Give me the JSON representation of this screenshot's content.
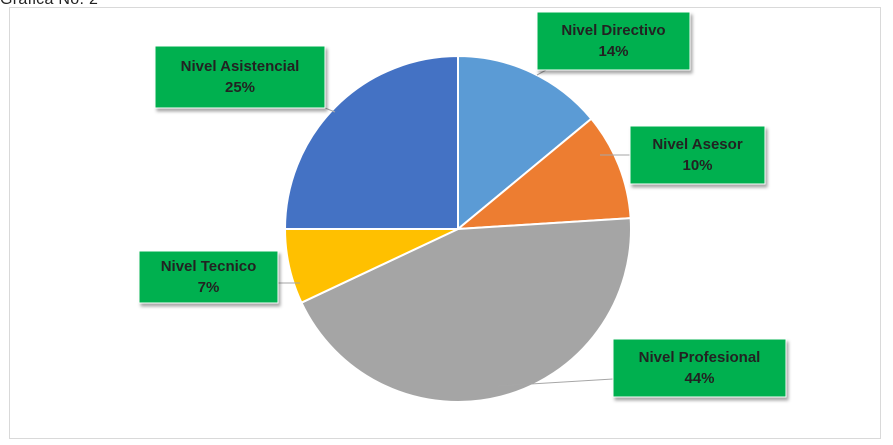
{
  "caption": "Gráfica No. 2",
  "colors": {
    "label_box": "#00b050",
    "leader": "#a6a6a6",
    "slice_edge": "#ffffff"
  },
  "chart_data": {
    "type": "pie",
    "title": "",
    "show_percent_labels": true,
    "slices": [
      {
        "label": "Nivel Directivo",
        "value": 14,
        "percent_text": "14%",
        "color": "#5b9bd5"
      },
      {
        "label": "Nivel Asesor",
        "value": 10,
        "percent_text": "10%",
        "color": "#ed7d31"
      },
      {
        "label": "Nivel Profesional",
        "value": 44,
        "percent_text": "44%",
        "color": "#a5a5a5"
      },
      {
        "label": "Nivel Tecnico",
        "value": 7,
        "percent_text": "7%",
        "color": "#ffc000"
      },
      {
        "label": "Nivel Asistencial",
        "value": 25,
        "percent_text": "25%",
        "color": "#4472c4"
      }
    ]
  }
}
